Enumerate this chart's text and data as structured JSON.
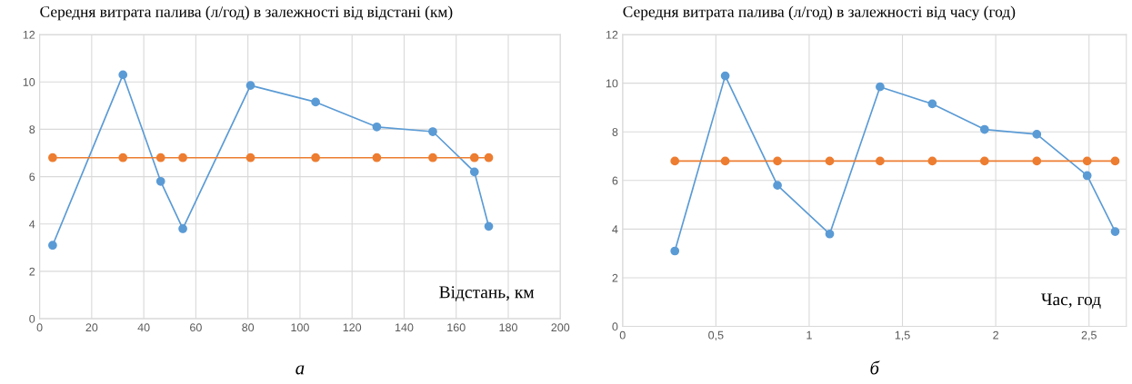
{
  "chart_data": [
    {
      "type": "line",
      "title": "Середня витрата палива (л/год) в залежності від відстані (км)",
      "xlabel": "Відстань, км",
      "x": [
        5,
        32,
        46.5,
        55,
        81,
        106,
        129.5,
        151,
        167,
        172.5
      ],
      "series": [
        {
          "color": "#5b9bd5",
          "values": [
            3.1,
            10.3,
            5.8,
            3.8,
            9.85,
            9.15,
            8.1,
            7.9,
            6.2,
            3.9
          ]
        },
        {
          "color": "#ed7d31",
          "values": [
            6.8,
            6.8,
            6.8,
            6.8,
            6.8,
            6.8,
            6.8,
            6.8,
            6.8,
            6.8
          ]
        }
      ],
      "xlim": [
        0,
        200
      ],
      "xticks": [
        0,
        20,
        40,
        60,
        80,
        100,
        120,
        140,
        160,
        180,
        200
      ],
      "ylim": [
        0,
        12
      ],
      "yticks": [
        0,
        2,
        4,
        6,
        8,
        10,
        12
      ],
      "grid": true,
      "marker": "circle",
      "line_style": "solid",
      "annotations": [
        "а"
      ]
    },
    {
      "type": "line",
      "title": "Середня витрата палива (л/год) в залежності від часу (год)",
      "xlabel": "Час, год",
      "x": [
        0.28,
        0.55,
        0.83,
        1.11,
        1.38,
        1.66,
        1.94,
        2.22,
        2.49,
        2.64
      ],
      "series": [
        {
          "color": "#5b9bd5",
          "values": [
            3.1,
            10.3,
            5.8,
            3.8,
            9.85,
            9.15,
            8.1,
            7.9,
            6.2,
            3.9
          ]
        },
        {
          "color": "#ed7d31",
          "values": [
            6.8,
            6.8,
            6.8,
            6.8,
            6.8,
            6.8,
            6.8,
            6.8,
            6.8,
            6.8
          ]
        }
      ],
      "xlim": [
        0,
        2.7
      ],
      "xticks": [
        0,
        {
          "value": 0.5,
          "label": "0,5"
        },
        1,
        {
          "value": 1.5,
          "label": "1,5"
        },
        2,
        {
          "value": 2.5,
          "label": "2,5"
        }
      ],
      "ylim": [
        0,
        12
      ],
      "yticks": [
        0,
        2,
        4,
        6,
        8,
        10,
        12
      ],
      "grid": true,
      "marker": "circle",
      "line_style": "solid",
      "annotations": [
        "б"
      ]
    }
  ]
}
